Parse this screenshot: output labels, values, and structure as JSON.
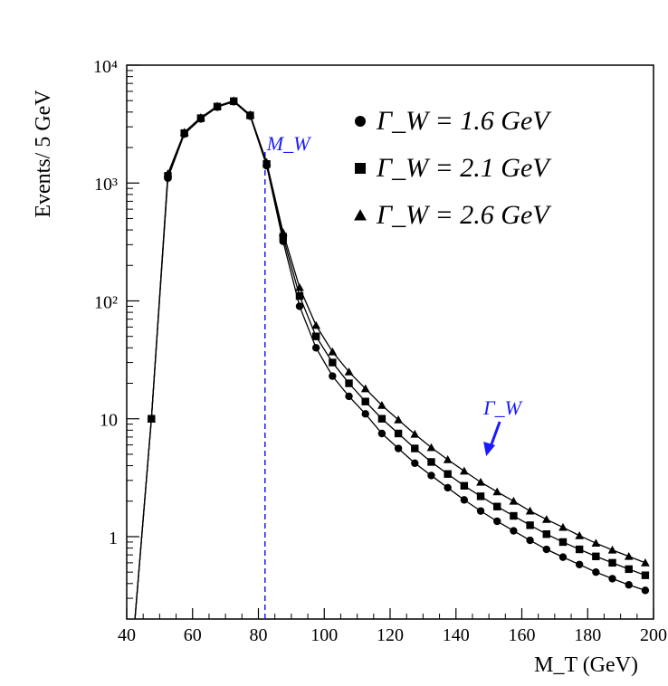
{
  "chart_data": {
    "type": "line",
    "title": "",
    "xlabel": "M_T (GeV)",
    "ylabel": "Events/ 5 GeV",
    "xlim": [
      40,
      200
    ],
    "ylim": [
      0.2,
      10000
    ],
    "y_scale": "log",
    "grid": false,
    "legend_position": "top-right",
    "x_ticks": [
      40,
      60,
      80,
      100,
      120,
      140,
      160,
      180,
      200
    ],
    "x_tick_labels": [
      "40",
      "60",
      "80",
      "100",
      "120",
      "140",
      "160",
      "180",
      "200"
    ],
    "y_ticks": [
      1,
      10,
      100,
      1000,
      10000
    ],
    "y_tick_labels": [
      "1",
      "10",
      "10²",
      "10³",
      "10⁴"
    ],
    "x": [
      47.5,
      52.5,
      57.5,
      62.5,
      67.5,
      72.5,
      77.5,
      82.5,
      87.5,
      92.5,
      97.5,
      102.5,
      107.5,
      112.5,
      117.5,
      122.5,
      127.5,
      132.5,
      137.5,
      142.5,
      147.5,
      152.5,
      157.5,
      162.5,
      167.5,
      172.5,
      177.5,
      182.5,
      187.5,
      192.5,
      197.5
    ],
    "series": [
      {
        "name": "Γ_W = 1.6 GeV",
        "marker": "circle",
        "values": [
          10,
          1100,
          2600,
          3500,
          4400,
          4900,
          3700,
          1400,
          320,
          90,
          40,
          23,
          15.5,
          11,
          7.5,
          5.6,
          4.2,
          3.3,
          2.6,
          2.05,
          1.65,
          1.35,
          1.12,
          0.93,
          0.78,
          0.67,
          0.58,
          0.5,
          0.44,
          0.39,
          0.35
        ]
      },
      {
        "name": "Γ_W = 2.1 GeV",
        "marker": "square",
        "values": [
          10,
          1150,
          2650,
          3550,
          4450,
          4950,
          3750,
          1450,
          350,
          110,
          50,
          30,
          20,
          14,
          10,
          7.5,
          5.6,
          4.3,
          3.4,
          2.7,
          2.2,
          1.8,
          1.5,
          1.25,
          1.05,
          0.9,
          0.78,
          0.68,
          0.6,
          0.53,
          0.47
        ]
      },
      {
        "name": "Γ_W = 2.6 GeV",
        "marker": "triangle",
        "values": [
          10,
          1200,
          2700,
          3600,
          4500,
          5000,
          3800,
          1500,
          380,
          130,
          62,
          37,
          25,
          18,
          13,
          9.8,
          7.4,
          5.7,
          4.5,
          3.6,
          2.9,
          2.4,
          2.0,
          1.65,
          1.4,
          1.2,
          1.02,
          0.88,
          0.77,
          0.68,
          0.6
        ]
      }
    ],
    "annotations": [
      {
        "text": "M_W",
        "x": 82,
        "color": "#1a1aff",
        "style": "dashed-vertical-line"
      },
      {
        "text": "Γ_W",
        "x": 150,
        "color": "#1a1aff",
        "style": "arrow"
      }
    ]
  }
}
